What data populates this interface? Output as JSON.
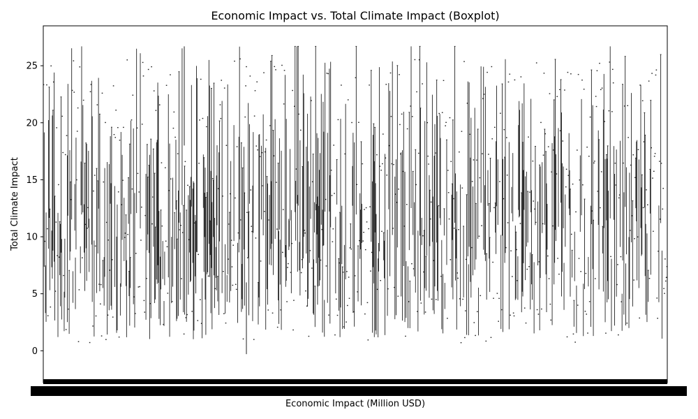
{
  "chart_data": {
    "type": "boxplot",
    "title": "Economic Impact vs. Total Climate Impact (Boxplot)",
    "xlabel": "Economic Impact (Million USD)",
    "ylabel": "Total Climate Impact",
    "ylim": [
      -2.8,
      28.5
    ],
    "yticks": [
      0,
      5,
      10,
      15,
      20,
      25
    ],
    "x_tick_labels_legible": false,
    "grid": false,
    "legend": "none",
    "category_count": 1000,
    "summary": {
      "y_min_observed": -0.3,
      "y_max_observed": 26.7,
      "typical_whisker_low": 4,
      "typical_whisker_high": 24
    },
    "colors": {
      "box_line": "#222222",
      "axes": "#000000",
      "background": "#ffffff"
    }
  }
}
